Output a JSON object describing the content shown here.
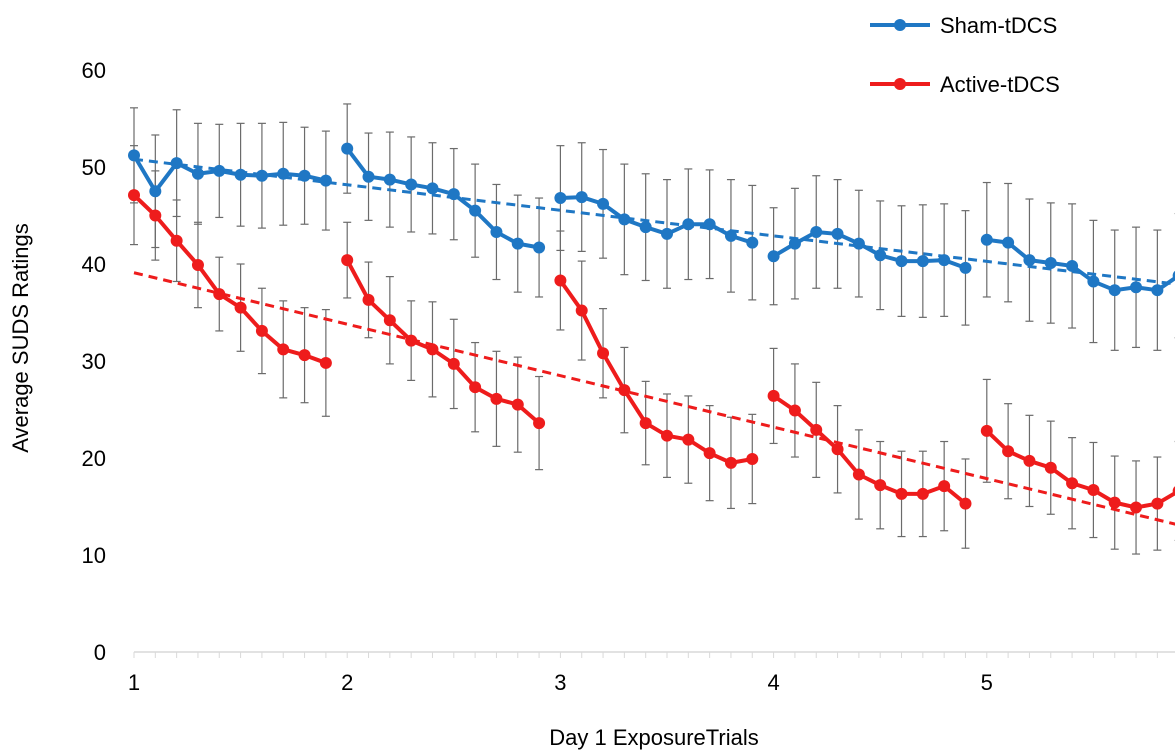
{
  "chart_data": {
    "type": "line",
    "xlabel": "Day 1 ExposureTrials",
    "ylabel": "Average SUDS Ratings",
    "ylim": [
      0,
      60
    ],
    "yticks": [
      "0",
      "10",
      "20",
      "30",
      "40",
      "50",
      "60"
    ],
    "block_labels": [
      "1",
      "2",
      "3",
      "4",
      "5"
    ],
    "trials_per_block": 10,
    "legend_position": "top-right",
    "series": [
      {
        "name": "Sham-tDCS",
        "color": "#1f77c4",
        "blocks": [
          [
            51.2,
            47.5,
            50.4,
            49.3,
            49.6,
            49.2,
            49.1,
            49.3,
            49.1,
            48.6
          ],
          [
            51.9,
            49.0,
            48.7,
            48.2,
            47.8,
            47.2,
            45.5,
            43.3,
            42.1,
            41.7
          ],
          [
            46.8,
            46.9,
            46.2,
            44.6,
            43.8,
            43.1,
            44.1,
            44.1,
            42.9,
            42.2
          ],
          [
            40.8,
            42.1,
            43.3,
            43.1,
            42.1,
            40.9,
            40.3,
            40.3,
            40.4,
            39.6
          ],
          [
            42.5,
            42.2,
            40.4,
            40.1,
            39.8,
            38.2,
            37.3,
            37.6,
            37.3,
            38.8
          ]
        ],
        "errors": [
          [
            4.9,
            5.8,
            5.5,
            5.2,
            4.8,
            5.3,
            5.4,
            5.3,
            5.0,
            5.1
          ],
          [
            4.6,
            4.5,
            4.9,
            4.9,
            4.7,
            4.7,
            4.8,
            4.9,
            5.0,
            5.1
          ],
          [
            5.4,
            5.6,
            5.6,
            5.7,
            5.5,
            5.6,
            5.7,
            5.6,
            5.8,
            5.9
          ],
          [
            5.0,
            5.7,
            5.8,
            5.6,
            5.5,
            5.6,
            5.7,
            5.8,
            5.8,
            5.9
          ],
          [
            5.9,
            6.1,
            6.3,
            6.2,
            6.4,
            6.3,
            6.2,
            6.2,
            6.2,
            6.4
          ]
        ],
        "trend": [
          50.8,
          37.9
        ]
      },
      {
        "name": "Active-tDCS",
        "color": "#ee1c1c",
        "blocks": [
          [
            47.1,
            45.0,
            42.4,
            39.9,
            36.9,
            35.5,
            33.1,
            31.2,
            30.6,
            29.8
          ],
          [
            40.4,
            36.3,
            34.2,
            32.1,
            31.2,
            29.7,
            27.3,
            26.1,
            25.5,
            23.6
          ],
          [
            38.3,
            35.2,
            30.8,
            27.0,
            23.6,
            22.3,
            21.9,
            20.5,
            19.5,
            19.9
          ],
          [
            26.4,
            24.9,
            22.9,
            20.9,
            18.3,
            17.2,
            16.3,
            16.3,
            17.1,
            15.3
          ],
          [
            22.8,
            20.7,
            19.7,
            19.0,
            17.4,
            16.7,
            15.4,
            14.9,
            15.3,
            16.6
          ]
        ],
        "errors": [
          [
            5.1,
            4.6,
            4.2,
            4.4,
            3.8,
            4.5,
            4.4,
            5.0,
            4.9,
            5.5
          ],
          [
            3.9,
            3.9,
            4.5,
            4.1,
            4.9,
            4.6,
            4.6,
            4.9,
            4.9,
            4.8
          ],
          [
            5.1,
            5.1,
            4.6,
            4.4,
            4.3,
            4.3,
            4.5,
            4.9,
            4.7,
            4.6
          ],
          [
            4.9,
            4.8,
            4.9,
            4.5,
            4.6,
            4.5,
            4.4,
            4.4,
            4.6,
            4.6
          ],
          [
            5.3,
            4.9,
            4.7,
            4.8,
            4.7,
            4.9,
            4.8,
            4.8,
            4.8,
            5.1
          ]
        ],
        "trend": [
          39.1,
          13.1
        ]
      }
    ]
  }
}
